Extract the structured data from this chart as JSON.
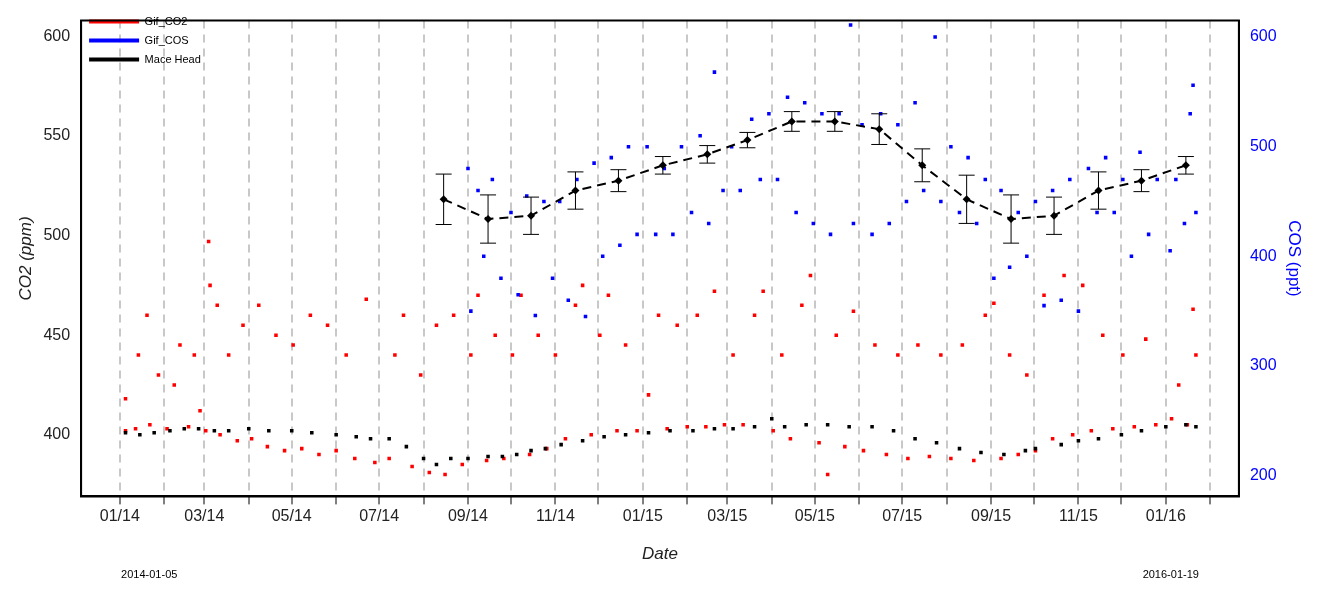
{
  "chart_data": {
    "type": "scatter",
    "xlabel": "Date",
    "ylabel": "CO2 (ppm)",
    "y2label": "COS (ppt)",
    "annotations": [
      "2014-01-05",
      "2016-01-19"
    ],
    "xlim": [
      "2013-12-05",
      "2016-02-21"
    ],
    "xticks": [
      {
        "value": "2014-01-01",
        "label": "01/14"
      },
      {
        "value": "2014-02-01",
        "label": null
      },
      {
        "value": "2014-03-01",
        "label": "03/14"
      },
      {
        "value": "2014-04-01",
        "label": null
      },
      {
        "value": "2014-05-01",
        "label": "05/14"
      },
      {
        "value": "2014-06-01",
        "label": null
      },
      {
        "value": "2014-07-01",
        "label": "07/14"
      },
      {
        "value": "2014-08-01",
        "label": null
      },
      {
        "value": "2014-09-01",
        "label": "09/14"
      },
      {
        "value": "2014-10-01",
        "label": null
      },
      {
        "value": "2014-11-01",
        "label": "11/14"
      },
      {
        "value": "2014-12-01",
        "label": null
      },
      {
        "value": "2015-01-01",
        "label": "01/15"
      },
      {
        "value": "2015-02-01",
        "label": null
      },
      {
        "value": "2015-03-01",
        "label": "03/15"
      },
      {
        "value": "2015-04-01",
        "label": null
      },
      {
        "value": "2015-05-01",
        "label": "05/15"
      },
      {
        "value": "2015-06-01",
        "label": null
      },
      {
        "value": "2015-07-01",
        "label": "07/15"
      },
      {
        "value": "2015-08-01",
        "label": null
      },
      {
        "value": "2015-09-01",
        "label": "09/15"
      },
      {
        "value": "2015-10-01",
        "label": null
      },
      {
        "value": "2015-11-01",
        "label": "11/15"
      },
      {
        "value": "2015-12-01",
        "label": null
      },
      {
        "value": "2016-01-01",
        "label": "01/16"
      },
      {
        "value": "2016-02-01",
        "label": null
      }
    ],
    "ylim": [
      369,
      608
    ],
    "yticks": [
      400,
      450,
      500,
      550,
      600
    ],
    "y2lim": [
      181,
      615
    ],
    "y2ticks": [
      200,
      300,
      400,
      500,
      600
    ],
    "grid": "x",
    "legend": "top left",
    "series": [
      {
        "name": "Gif_CO2",
        "type": "scatter",
        "color": "#ff0000",
        "marker": "square",
        "x": [
          "2014-01-05",
          "2014-01-05",
          "2014-01-12",
          "2014-01-14",
          "2014-01-20",
          "2014-01-22",
          "2014-01-28",
          "2014-02-03",
          "2014-02-08",
          "2014-02-12",
          "2014-02-18",
          "2014-02-22",
          "2014-02-26",
          "2014-03-02",
          "2014-03-04",
          "2014-03-05",
          "2014-03-10",
          "2014-03-12",
          "2014-03-18",
          "2014-03-24",
          "2014-03-28",
          "2014-04-03",
          "2014-04-08",
          "2014-04-14",
          "2014-04-20",
          "2014-04-26",
          "2014-05-02",
          "2014-05-08",
          "2014-05-14",
          "2014-05-20",
          "2014-05-26",
          "2014-06-01",
          "2014-06-08",
          "2014-06-14",
          "2014-06-22",
          "2014-06-28",
          "2014-07-08",
          "2014-07-12",
          "2014-07-18",
          "2014-07-24",
          "2014-07-30",
          "2014-08-05",
          "2014-08-10",
          "2014-08-16",
          "2014-08-22",
          "2014-08-28",
          "2014-09-03",
          "2014-09-08",
          "2014-09-14",
          "2014-09-20",
          "2014-09-26",
          "2014-10-02",
          "2014-10-08",
          "2014-10-14",
          "2014-10-20",
          "2014-10-26",
          "2014-11-01",
          "2014-11-08",
          "2014-11-15",
          "2014-11-20",
          "2014-11-26",
          "2014-12-02",
          "2014-12-08",
          "2014-12-14",
          "2014-12-20",
          "2014-12-28",
          "2015-01-05",
          "2015-01-12",
          "2015-01-18",
          "2015-01-25",
          "2015-02-01",
          "2015-02-08",
          "2015-02-14",
          "2015-02-20",
          "2015-02-27",
          "2015-03-05",
          "2015-03-12",
          "2015-03-20",
          "2015-03-26",
          "2015-04-02",
          "2015-04-08",
          "2015-04-14",
          "2015-04-22",
          "2015-04-28",
          "2015-05-04",
          "2015-05-10",
          "2015-05-16",
          "2015-05-22",
          "2015-05-28",
          "2015-06-04",
          "2015-06-12",
          "2015-06-20",
          "2015-06-28",
          "2015-07-05",
          "2015-07-12",
          "2015-07-20",
          "2015-07-28",
          "2015-08-04",
          "2015-08-12",
          "2015-08-20",
          "2015-08-28",
          "2015-09-03",
          "2015-09-08",
          "2015-09-14",
          "2015-09-20",
          "2015-09-26",
          "2015-10-02",
          "2015-10-08",
          "2015-10-14",
          "2015-10-22",
          "2015-10-28",
          "2015-11-04",
          "2015-11-10",
          "2015-11-18",
          "2015-11-25",
          "2015-12-02",
          "2015-12-10",
          "2015-12-18",
          "2015-12-25",
          "2016-01-05",
          "2016-01-10",
          "2016-01-16",
          "2016-01-20",
          "2016-01-22"
        ],
        "values": [
          402,
          418,
          403,
          440,
          460,
          405,
          430,
          403,
          425,
          445,
          404,
          440,
          412,
          402,
          497,
          475,
          465,
          400,
          440,
          397,
          455,
          398,
          465,
          394,
          450,
          392,
          445,
          393,
          460,
          390,
          455,
          392,
          440,
          388,
          468,
          386,
          388,
          440,
          460,
          384,
          430,
          381,
          455,
          380,
          460,
          385,
          440,
          470,
          387,
          450,
          388,
          440,
          470,
          390,
          450,
          393,
          440,
          398,
          465,
          475,
          400,
          450,
          470,
          402,
          445,
          402,
          420,
          460,
          403,
          455,
          404,
          460,
          404,
          472,
          405,
          440,
          405,
          460,
          472,
          402,
          440,
          398,
          465,
          480,
          396,
          380,
          450,
          394,
          462,
          392,
          445,
          390,
          440,
          388,
          445,
          389,
          440,
          388,
          445,
          387,
          460,
          466,
          388,
          440,
          390,
          430,
          392,
          470,
          398,
          480,
          400,
          475,
          402,
          450,
          403,
          440,
          404,
          448,
          405,
          408,
          425,
          405,
          463,
          440
        ]
      },
      {
        "name": "Gif_COS",
        "type": "scatter",
        "axis": "y2",
        "color": "#0000ff",
        "marker": "square",
        "x": [
          "2014-09-01",
          "2014-09-03",
          "2014-09-08",
          "2014-09-12",
          "2014-09-18",
          "2014-09-24",
          "2014-10-01",
          "2014-10-06",
          "2014-10-12",
          "2014-10-18",
          "2014-10-24",
          "2014-10-30",
          "2014-11-04",
          "2014-11-10",
          "2014-11-16",
          "2014-11-22",
          "2014-11-28",
          "2014-12-04",
          "2014-12-10",
          "2014-12-16",
          "2014-12-22",
          "2014-12-28",
          "2015-01-04",
          "2015-01-10",
          "2015-01-16",
          "2015-01-22",
          "2015-01-28",
          "2015-02-04",
          "2015-02-10",
          "2015-02-16",
          "2015-02-20",
          "2015-02-26",
          "2015-03-04",
          "2015-03-10",
          "2015-03-18",
          "2015-03-24",
          "2015-03-30",
          "2015-04-05",
          "2015-04-12",
          "2015-04-18",
          "2015-04-24",
          "2015-04-30",
          "2015-05-06",
          "2015-05-12",
          "2015-05-18",
          "2015-05-26",
          "2015-05-28",
          "2015-06-03",
          "2015-06-10",
          "2015-06-16",
          "2015-06-22",
          "2015-06-28",
          "2015-07-04",
          "2015-07-10",
          "2015-07-16",
          "2015-07-24",
          "2015-07-28",
          "2015-08-04",
          "2015-08-10",
          "2015-08-16",
          "2015-08-22",
          "2015-08-28",
          "2015-09-03",
          "2015-09-08",
          "2015-09-14",
          "2015-09-20",
          "2015-09-26",
          "2015-10-02",
          "2015-10-08",
          "2015-10-14",
          "2015-10-20",
          "2015-10-26",
          "2015-11-01",
          "2015-11-08",
          "2015-11-14",
          "2015-11-20",
          "2015-11-26",
          "2015-12-02",
          "2015-12-08",
          "2015-12-14",
          "2015-12-20",
          "2015-12-26",
          "2016-01-04",
          "2016-01-08",
          "2016-01-14",
          "2016-01-18",
          "2016-01-20",
          "2016-01-22"
        ],
        "values": [
          480,
          350,
          460,
          400,
          470,
          380,
          440,
          365,
          455,
          346,
          450,
          380,
          450,
          360,
          470,
          345,
          485,
          400,
          490,
          410,
          500,
          420,
          500,
          420,
          480,
          420,
          500,
          440,
          510,
          430,
          568,
          460,
          500,
          460,
          525,
          470,
          530,
          470,
          545,
          440,
          540,
          430,
          530,
          420,
          530,
          611,
          430,
          520,
          420,
          530,
          430,
          520,
          450,
          540,
          460,
          600,
          450,
          500,
          440,
          490,
          430,
          470,
          380,
          460,
          390,
          440,
          400,
          450,
          355,
          460,
          360,
          470,
          350,
          480,
          440,
          490,
          440,
          470,
          400,
          495,
          420,
          470,
          405,
          470,
          430,
          530,
          556,
          440
        ]
      },
      {
        "type": "scatter",
        "color": "#000000",
        "marker": "square",
        "x": [
          "2014-01-05",
          "2014-01-15",
          "2014-01-25",
          "2014-02-05",
          "2014-02-15",
          "2014-02-25",
          "2014-03-08",
          "2014-03-18",
          "2014-04-01",
          "2014-04-15",
          "2014-05-01",
          "2014-05-15",
          "2014-06-01",
          "2014-06-15",
          "2014-06-25",
          "2014-07-08",
          "2014-07-20",
          "2014-08-01",
          "2014-08-10",
          "2014-08-20",
          "2014-09-01",
          "2014-09-15",
          "2014-09-25",
          "2014-10-05",
          "2014-10-15",
          "2014-10-25",
          "2014-11-05",
          "2014-11-20",
          "2014-12-05",
          "2014-12-20",
          "2015-01-05",
          "2015-01-20",
          "2015-02-05",
          "2015-02-20",
          "2015-03-05",
          "2015-03-20",
          "2015-04-01",
          "2015-04-10",
          "2015-04-25",
          "2015-05-10",
          "2015-05-25",
          "2015-06-10",
          "2015-06-25",
          "2015-07-10",
          "2015-07-25",
          "2015-08-10",
          "2015-08-25",
          "2015-09-10",
          "2015-09-25",
          "2015-10-02",
          "2015-10-20",
          "2015-11-01",
          "2015-11-15",
          "2015-12-01",
          "2015-12-15",
          "2016-01-01",
          "2016-01-15",
          "2016-01-22"
        ],
        "values": [
          401,
          400,
          401,
          402,
          403,
          403,
          402,
          402,
          403,
          402,
          402,
          401,
          400,
          399,
          398,
          398,
          394,
          388,
          385,
          388,
          388,
          389,
          389,
          390,
          392,
          393,
          395,
          397,
          399,
          400,
          401,
          402,
          402,
          403,
          403,
          404,
          408,
          404,
          405,
          405,
          404,
          404,
          402,
          398,
          396,
          393,
          391,
          390,
          392,
          393,
          395,
          397,
          398,
          400,
          402,
          404,
          405,
          404
        ]
      },
      {
        "name": "Mace Head",
        "type": "line",
        "axis": "y2",
        "color": "#000000",
        "marker": "diamond",
        "line_style": "dashed",
        "x": [
          "2014-08-15",
          "2014-09-15",
          "2014-10-15",
          "2014-11-15",
          "2014-12-15",
          "2015-01-15",
          "2015-02-15",
          "2015-03-15",
          "2015-04-15",
          "2015-05-15",
          "2015-06-15",
          "2015-07-15",
          "2015-08-15",
          "2015-09-15",
          "2015-10-15",
          "2015-11-15",
          "2015-12-15",
          "2016-01-15"
        ],
        "values": [
          452,
          434,
          437,
          460,
          469,
          483,
          493,
          506,
          523,
          523,
          516,
          483,
          452,
          434,
          437,
          460,
          469,
          483
        ],
        "errors": [
          23,
          22,
          17,
          17,
          10,
          8,
          8,
          7,
          9,
          9,
          14,
          15,
          22,
          22,
          17,
          17,
          10,
          8
        ]
      }
    ]
  }
}
